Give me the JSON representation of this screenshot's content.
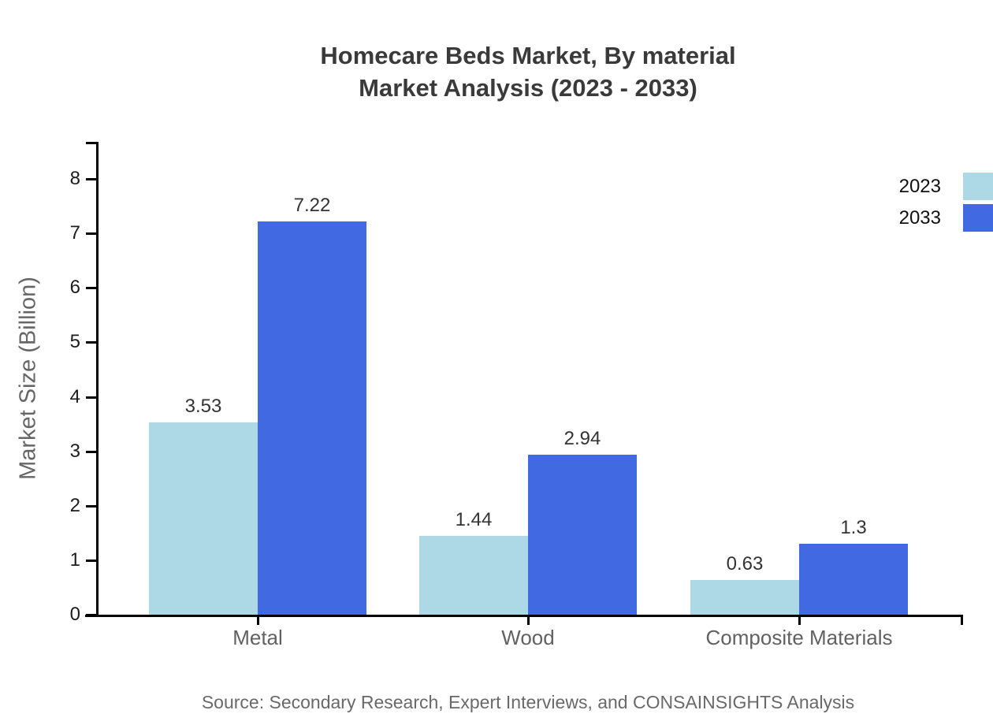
{
  "title": {
    "line1": "Homecare Beds Market, By material",
    "line2": "Market Analysis (2023 - 2033)"
  },
  "y_axis_title": "Market Size (Billion)",
  "source_note": "Source: Secondary Research, Expert Interviews, and CONSAINSIGHTS Analysis",
  "legend": {
    "items": [
      "2023",
      "2033"
    ]
  },
  "colors": {
    "series_2023": "#ADD8E6",
    "series_2033": "#4169E1",
    "axis": "#000000",
    "title_text": "#3a3a3a",
    "value_label": "#333333",
    "category_label": "#616161",
    "source_text": "#696969"
  },
  "chart_data": {
    "type": "bar",
    "title": "Homecare Beds Market, By material Market Analysis (2023 - 2033)",
    "categories": [
      "Metal",
      "Wood",
      "Composite Materials"
    ],
    "series": [
      {
        "name": "2023",
        "color": "#ADD8E6",
        "values": [
          3.53,
          1.44,
          0.63
        ]
      },
      {
        "name": "2033",
        "color": "#4169E1",
        "values": [
          7.22,
          2.94,
          1.3
        ]
      }
    ],
    "value_labels": [
      [
        "3.53",
        "7.22"
      ],
      [
        "1.44",
        "2.94"
      ],
      [
        "0.63",
        "1.3"
      ]
    ],
    "xlabel": "",
    "ylabel": "Market Size (Billion)",
    "ylim": [
      0,
      8
    ],
    "yticks": [
      0,
      1,
      2,
      3,
      4,
      5,
      6,
      7,
      8
    ],
    "grid": false,
    "legend_position": "outside-top-right"
  }
}
